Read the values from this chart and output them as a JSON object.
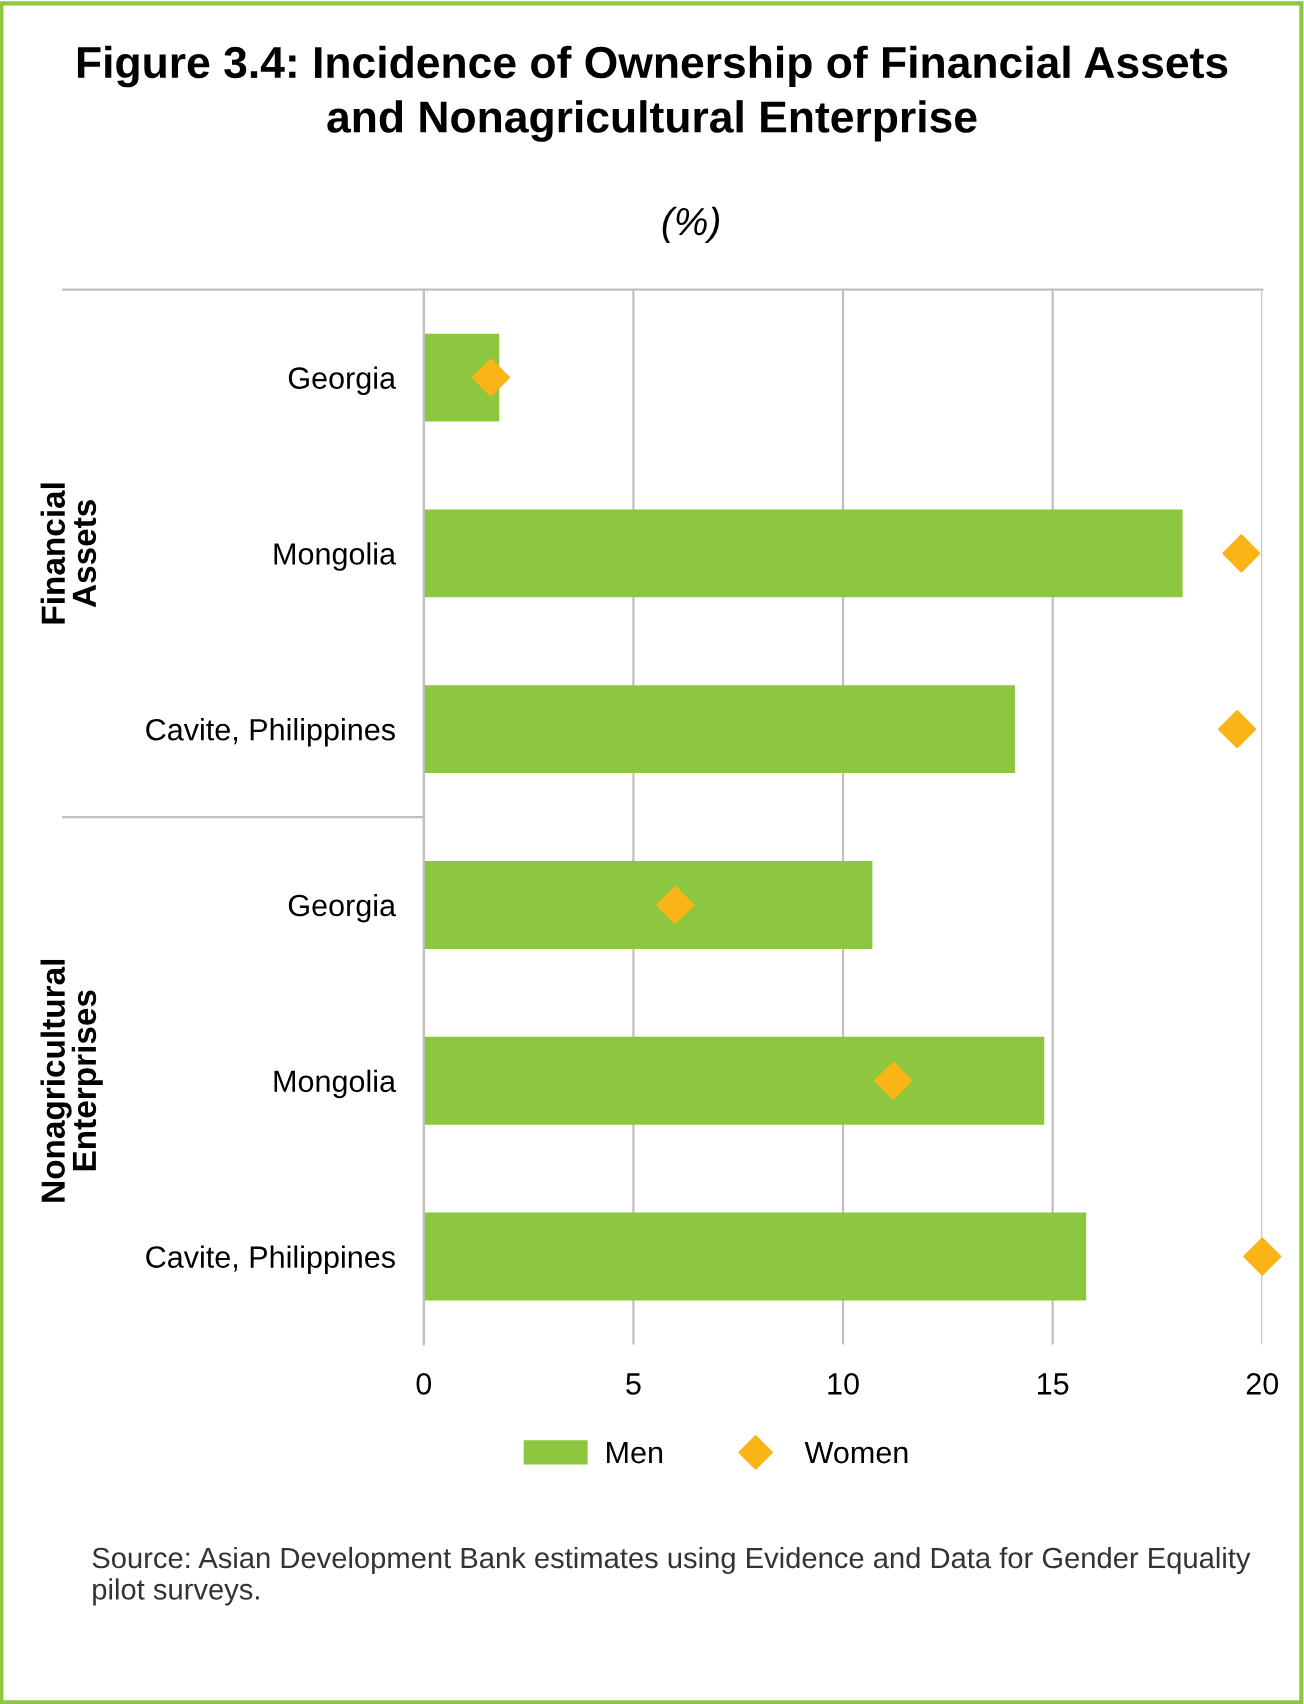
{
  "chart_data": {
    "type": "bar",
    "orientation": "horizontal",
    "title": "Figure 3.4: Incidence of Ownership of Financial Assets\nand Nonagricultural Enterprise",
    "subtitle": "(%)",
    "categories": [
      "Georgia",
      "Mongolia",
      "Cavite, Philippines",
      "Georgia",
      "Mongolia",
      "Cavite, Philippines"
    ],
    "series": [
      {
        "name": "Men",
        "color": "#8dc63f",
        "values": [
          1.8,
          18.1,
          14.1,
          10.7,
          14.8,
          15.8
        ]
      },
      {
        "name": "Women",
        "type": "scatter",
        "color": "#fbb416",
        "marker": "diamond",
        "values": [
          1.6,
          19.5,
          19.4,
          6.0,
          11.2,
          20.0
        ]
      }
    ],
    "xlim": [
      0,
      20
    ],
    "xticks": [
      0,
      5,
      10,
      15,
      20
    ],
    "grid": "x",
    "legend": "bottom",
    "annotations": [
      "Financial\nAssets",
      "Nonagricultural\nEnterprises",
      "Source: Asian Development Bank estimates using Evidence and Data for Gender Equality pilot surveys."
    ]
  }
}
